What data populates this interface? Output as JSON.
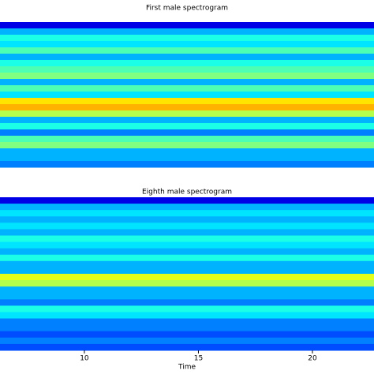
{
  "chart_data": [
    {
      "type": "heatmap",
      "title": "First male spectrogram",
      "colormap": "jet",
      "zlim": [
        0,
        1
      ],
      "xlim": [
        6.3,
        22.7
      ],
      "rows": [
        0.1,
        0.3,
        0.4,
        0.35,
        0.45,
        0.3,
        0.4,
        0.45,
        0.5,
        0.3,
        0.45,
        0.35,
        0.65,
        0.7,
        0.55,
        0.3,
        0.4,
        0.25,
        0.45,
        0.5,
        0.3,
        0.3,
        0.25
      ]
    },
    {
      "type": "heatmap",
      "title": "Eighth male spectrogram",
      "colormap": "jet",
      "zlim": [
        0,
        1
      ],
      "xlim": [
        6.3,
        22.7
      ],
      "xticks": [
        10,
        15,
        20
      ],
      "xlabel": "Time",
      "rows": [
        0.1,
        0.3,
        0.35,
        0.3,
        0.35,
        0.3,
        0.4,
        0.35,
        0.3,
        0.4,
        0.3,
        0.3,
        0.6,
        0.55,
        0.3,
        0.3,
        0.25,
        0.4,
        0.35,
        0.25,
        0.25,
        0.2,
        0.25,
        0.2
      ]
    }
  ]
}
